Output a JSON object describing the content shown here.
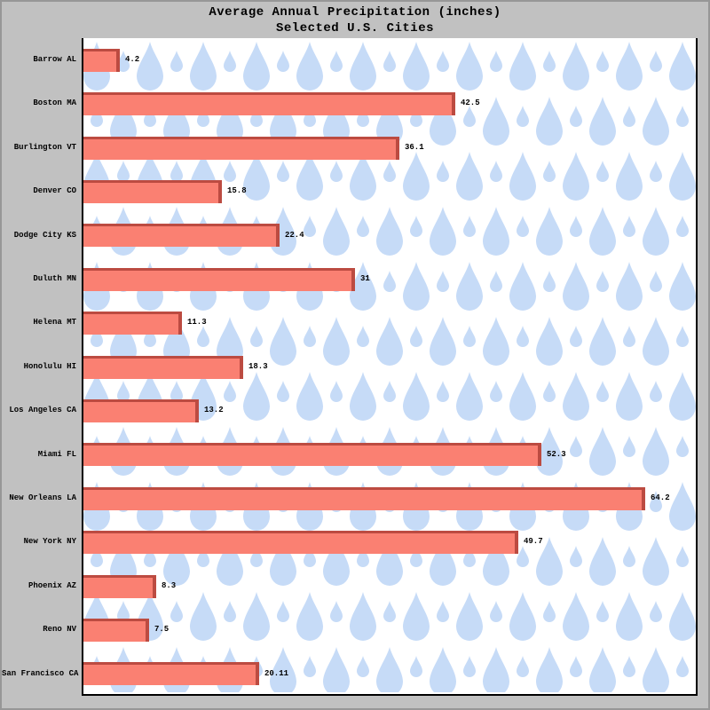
{
  "window": {
    "background_color": "#c1c1c1",
    "border_color": "#979797"
  },
  "header": {
    "title": "Average Annual Precipitation (inches)",
    "subtitle": "Selected U.S. Cities"
  },
  "chart_data": {
    "type": "bar",
    "orientation": "horizontal",
    "title": "Average Annual Precipitation (inches)",
    "subtitle": "Selected U.S. Cities",
    "xlabel": "",
    "ylabel": "",
    "categories": [
      "Barrow AL",
      "Boston MA",
      "Burlington VT",
      "Denver CO",
      "Dodge City KS",
      "Duluth MN",
      "Helena MT",
      "Honolulu HI",
      "Los Angeles CA",
      "Miami FL",
      "New Orleans LA",
      "New York NY",
      "Phoenix AZ",
      "Reno NV",
      "San Francisco CA"
    ],
    "values": [
      4.2,
      42.5,
      36.1,
      15.8,
      22.4,
      31,
      11.3,
      18.3,
      13.2,
      52.3,
      64.2,
      49.7,
      8.3,
      7.5,
      20.11
    ],
    "value_labels": [
      "4.2",
      "42.5",
      "36.1",
      "15.8",
      "22.4",
      "31",
      "11.3",
      "18.3",
      "13.2",
      "52.3",
      "64.2",
      "49.7",
      "8.3",
      "7.5",
      "20.11"
    ],
    "xlim": [
      0,
      70
    ],
    "grid": false,
    "legend": null,
    "bar_color": "#FA8072",
    "bar_edge_color": "#BC4B41",
    "plot_background": "#FFFFFF",
    "background_pattern": "raindrops",
    "pattern_color": "#C6DBF7",
    "axis_color": "#000000",
    "label_color": "#000000"
  }
}
